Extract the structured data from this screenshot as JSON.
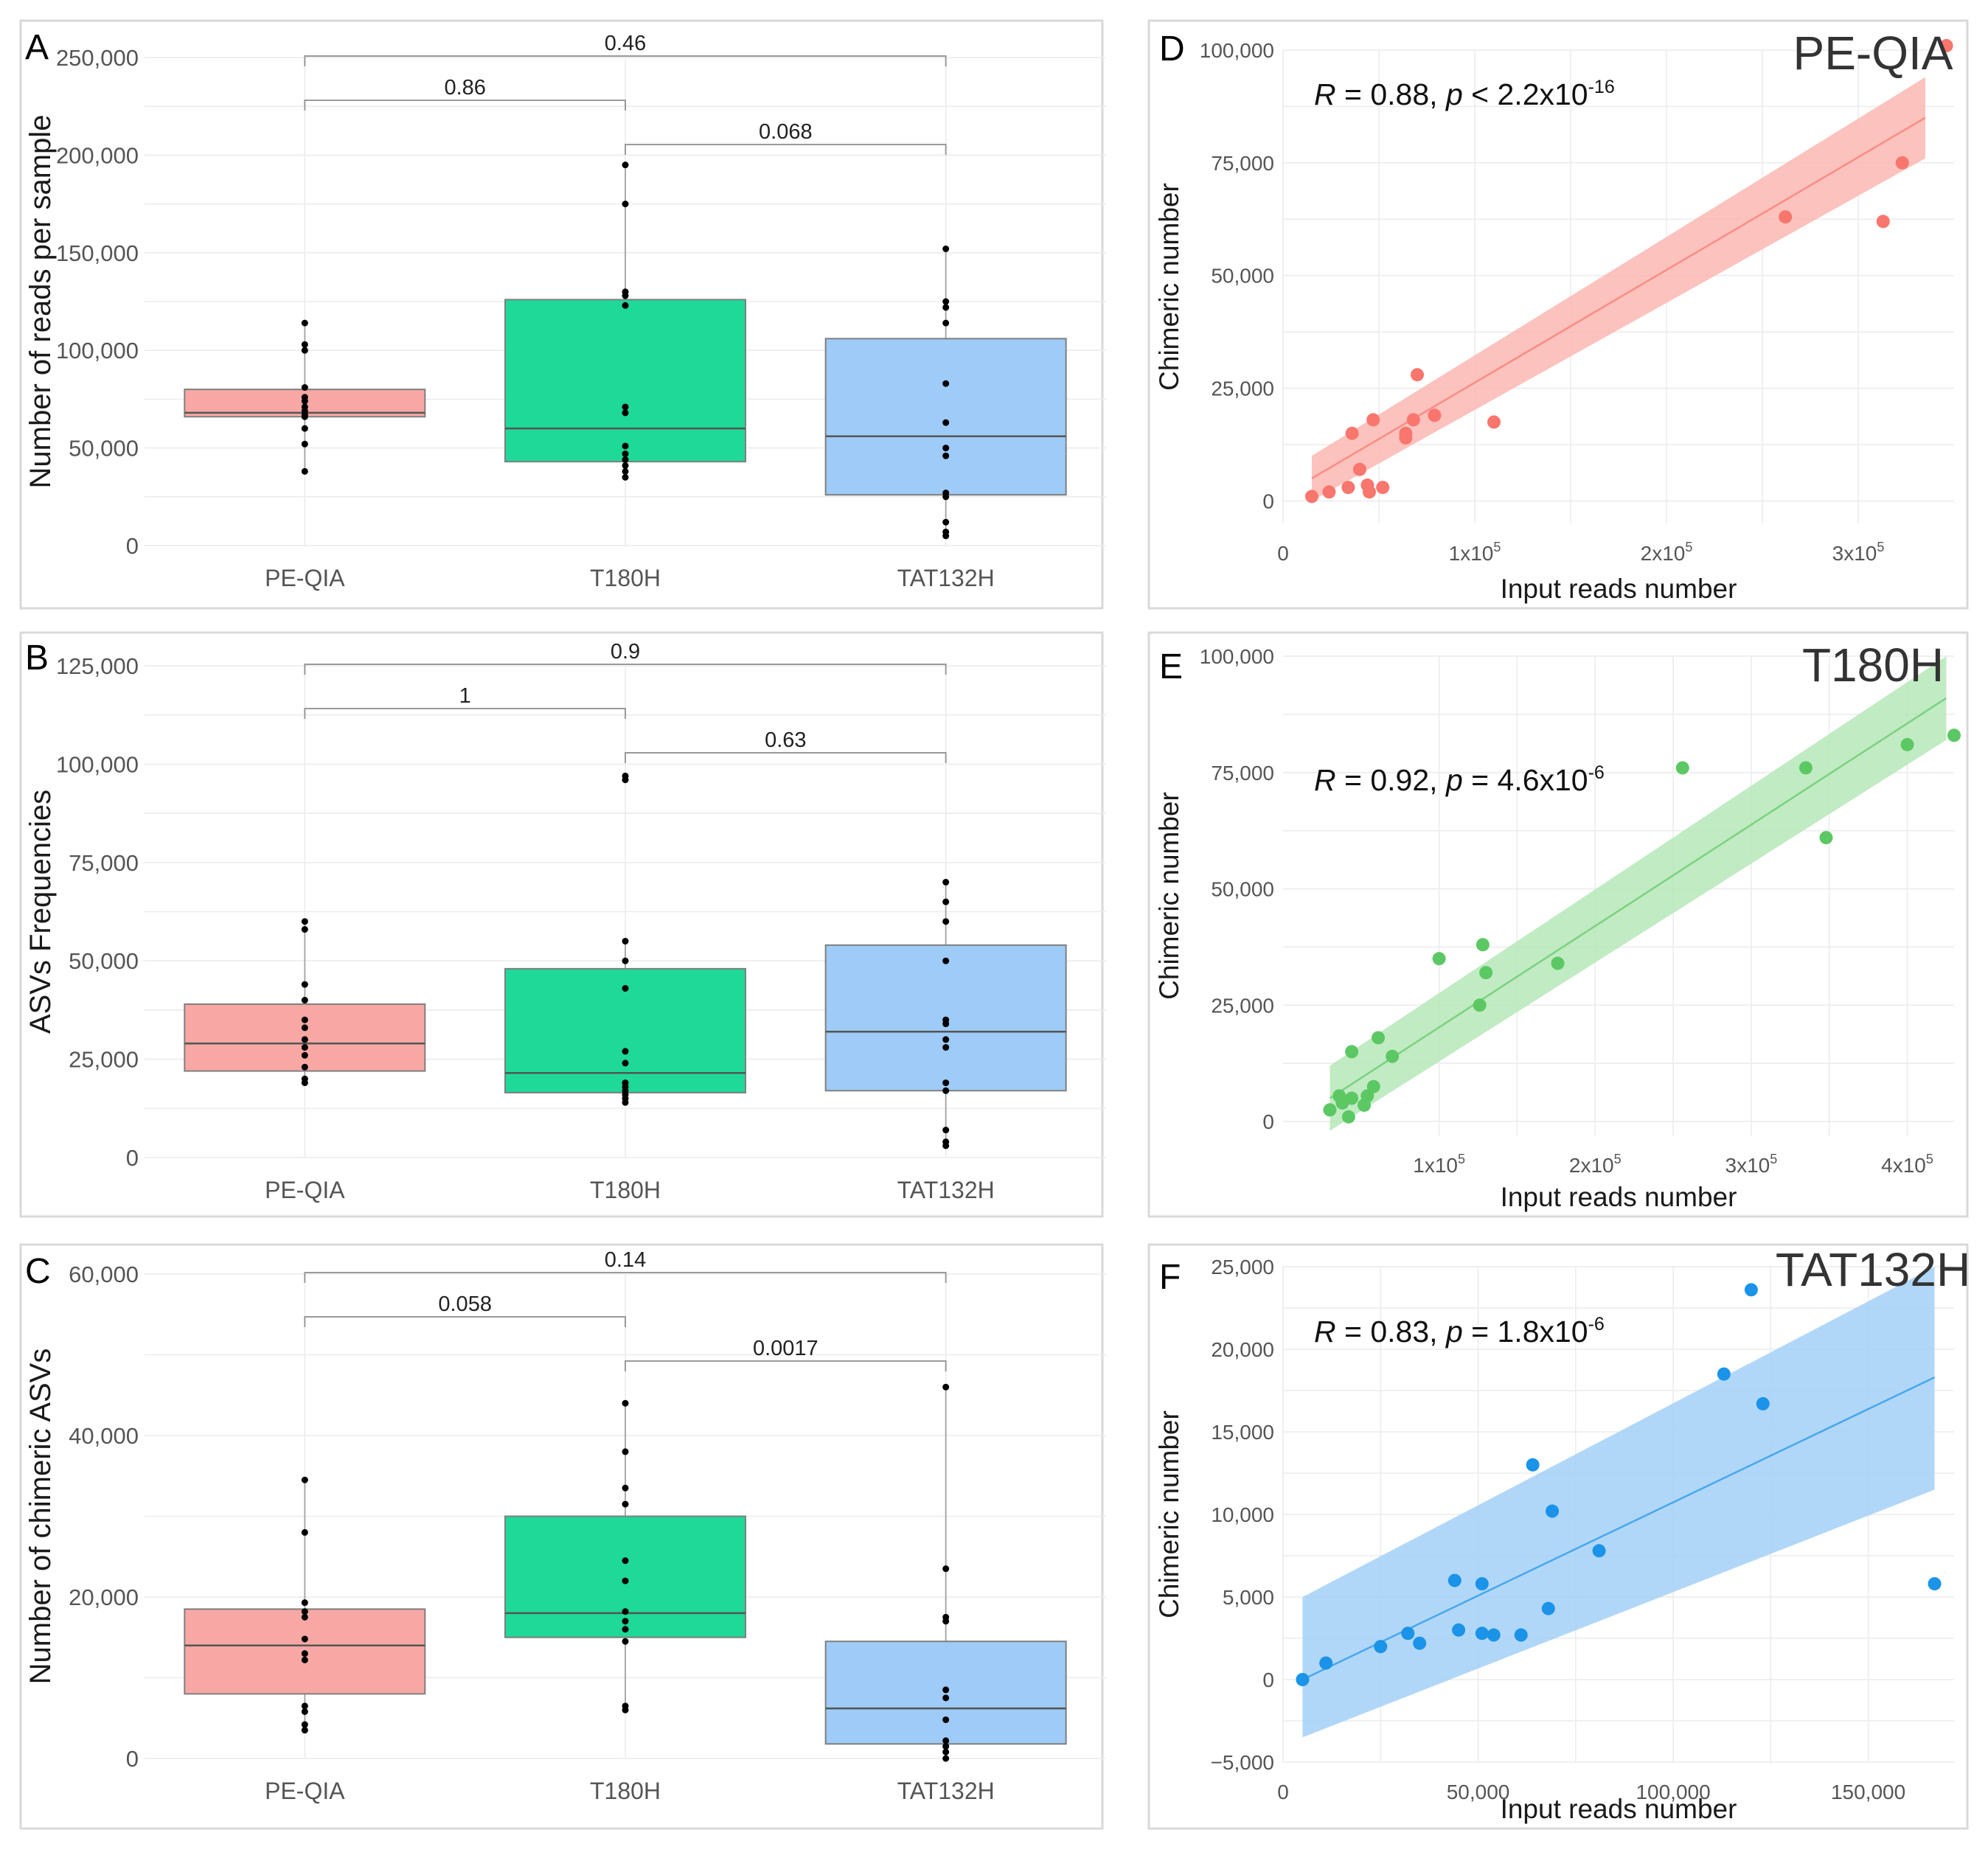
{
  "chart_data": [
    {
      "panel": "A",
      "type": "box",
      "ylabel": "Number of reads per sample",
      "ylim": [
        0,
        250000
      ],
      "yticks": [
        0,
        50000,
        100000,
        150000,
        200000,
        250000
      ],
      "ytick_labels": [
        "0",
        "50,000",
        "100,000",
        "150,000",
        "200,000",
        "250,000"
      ],
      "categories": [
        "PE-QIA",
        "T180H",
        "TAT132H"
      ],
      "boxes": [
        {
          "name": "PE-QIA",
          "color": "#f8a8a4",
          "q1": 66000,
          "median": 68000,
          "q3": 80000,
          "whisker_low": 38000,
          "whisker_high": 114000,
          "points": [
            38000,
            52000,
            60000,
            66000,
            67000,
            69000,
            71000,
            74000,
            76000,
            81000,
            100000,
            103000,
            114000
          ]
        },
        {
          "name": "T180H",
          "color": "#1ed998",
          "q1": 43000,
          "median": 60000,
          "q3": 126000,
          "whisker_low": 35000,
          "whisker_high": 195000,
          "points": [
            35000,
            38000,
            41000,
            44000,
            47000,
            51000,
            68000,
            71000,
            123000,
            128000,
            130000,
            175000,
            195000
          ]
        },
        {
          "name": "TAT132H",
          "color": "#9ecbf7",
          "q1": 26000,
          "median": 56000,
          "q3": 106000,
          "whisker_low": 5000,
          "whisker_high": 152000,
          "points": [
            5000,
            7000,
            12000,
            25000,
            27000,
            46000,
            50000,
            63000,
            83000,
            114000,
            122000,
            125000,
            152000
          ]
        }
      ],
      "comparisons": [
        {
          "from": 0,
          "to": 1,
          "label": "0.86",
          "level": 2
        },
        {
          "from": 1,
          "to": 2,
          "label": "0.068",
          "level": 1
        },
        {
          "from": 0,
          "to": 2,
          "label": "0.46",
          "level": 3
        }
      ]
    },
    {
      "panel": "B",
      "type": "box",
      "ylabel": "ASVs Frequencies",
      "ylim": [
        0,
        125000
      ],
      "yticks": [
        0,
        25000,
        50000,
        75000,
        100000,
        125000
      ],
      "ytick_labels": [
        "0",
        "25,000",
        "50,000",
        "75,000",
        "100,000",
        "125,000"
      ],
      "categories": [
        "PE-QIA",
        "T180H",
        "TAT132H"
      ],
      "boxes": [
        {
          "name": "PE-QIA",
          "color": "#f8a8a4",
          "q1": 22000,
          "median": 29000,
          "q3": 39000,
          "whisker_low": 19000,
          "whisker_high": 60000,
          "points": [
            19000,
            20000,
            23000,
            26000,
            28000,
            30000,
            33000,
            35000,
            40000,
            44000,
            58000,
            60000
          ]
        },
        {
          "name": "T180H",
          "color": "#1ed998",
          "q1": 16500,
          "median": 21500,
          "q3": 48000,
          "whisker_low": 14000,
          "whisker_high": 55000,
          "points": [
            14000,
            15000,
            16000,
            17000,
            18000,
            19000,
            24000,
            27000,
            43000,
            50000,
            55000,
            96000,
            97000
          ]
        },
        {
          "name": "TAT132H",
          "color": "#9ecbf7",
          "q1": 17000,
          "median": 32000,
          "q3": 54000,
          "whisker_low": 3000,
          "whisker_high": 70000,
          "points": [
            3000,
            4000,
            7000,
            17000,
            19000,
            28000,
            30000,
            34000,
            35000,
            50000,
            60000,
            65000,
            70000
          ]
        }
      ],
      "comparisons": [
        {
          "from": 0,
          "to": 1,
          "label": "1",
          "level": 2
        },
        {
          "from": 1,
          "to": 2,
          "label": "0.63",
          "level": 1
        },
        {
          "from": 0,
          "to": 2,
          "label": "0.9",
          "level": 3
        }
      ]
    },
    {
      "panel": "C",
      "type": "box",
      "ylabel": "Number of chimeric ASVs",
      "ylim": [
        0,
        60000
      ],
      "yticks": [
        0,
        20000,
        40000,
        60000
      ],
      "ytick_labels": [
        "0",
        "20,000",
        "40,000",
        "60,000"
      ],
      "categories": [
        "PE-QIA",
        "T180H",
        "TAT132H"
      ],
      "boxes": [
        {
          "name": "PE-QIA",
          "color": "#f8a8a4",
          "q1": 8000,
          "median": 14000,
          "q3": 18500,
          "whisker_low": 3500,
          "whisker_high": 34500,
          "points": [
            3500,
            4200,
            5800,
            6500,
            12200,
            13000,
            14800,
            17500,
            18200,
            19300,
            28000,
            34500
          ]
        },
        {
          "name": "T180H",
          "color": "#1ed998",
          "q1": 15000,
          "median": 18000,
          "q3": 30000,
          "whisker_low": 6000,
          "whisker_high": 44000,
          "points": [
            6000,
            6500,
            14500,
            16000,
            17000,
            18200,
            22000,
            24500,
            31500,
            33500,
            38000,
            44000
          ]
        },
        {
          "name": "TAT132H",
          "color": "#9ecbf7",
          "q1": 1800,
          "median": 6200,
          "q3": 14500,
          "whisker_low": 0,
          "whisker_high": 46000,
          "points": [
            0,
            800,
            1500,
            2200,
            4800,
            7500,
            8500,
            17000,
            17500,
            23500,
            46000
          ]
        }
      ],
      "comparisons": [
        {
          "from": 0,
          "to": 1,
          "label": "0.058",
          "level": 2
        },
        {
          "from": 1,
          "to": 2,
          "label": "0.0017",
          "level": 1
        },
        {
          "from": 0,
          "to": 2,
          "label": "0.14",
          "level": 3
        }
      ]
    },
    {
      "panel": "D",
      "type": "scatter",
      "title": "PE-QIA",
      "stat_R": "0.88",
      "stat_op": "<",
      "stat_mant": "2.2x10",
      "stat_exp": "-16",
      "xlabel": "Input reads number",
      "ylabel": "Chimeric number",
      "color": "#f8766d",
      "band_color": "#fbb7b2",
      "xlim": [
        0,
        350000
      ],
      "ylim": [
        -5000,
        100000
      ],
      "yticks": [
        0,
        25000,
        50000,
        75000,
        100000
      ],
      "ytick_labels": [
        "0",
        "25,000",
        "50,000",
        "75,000",
        "100,000"
      ],
      "xticks": [
        0,
        100000,
        200000,
        300000
      ],
      "xtick_mant": [
        "0",
        "1x10",
        "2x10",
        "3x10"
      ],
      "xtick_exp": [
        "",
        "5",
        "5",
        "5"
      ],
      "fit": {
        "x0": 15000,
        "y0": 5000,
        "x1": 335000,
        "y1": 85000
      },
      "band": {
        "lo0": 0,
        "hi0": 10000,
        "lo1": 76000,
        "hi1": 94000
      },
      "points": [
        [
          15000,
          1000
        ],
        [
          24000,
          2000
        ],
        [
          34000,
          3000
        ],
        [
          36000,
          15000
        ],
        [
          40000,
          7000
        ],
        [
          44000,
          3500
        ],
        [
          45000,
          2000
        ],
        [
          47000,
          18000
        ],
        [
          52000,
          3000
        ],
        [
          64000,
          14000
        ],
        [
          64000,
          15000
        ],
        [
          68000,
          18000
        ],
        [
          70000,
          28000
        ],
        [
          79000,
          19000
        ],
        [
          110000,
          17500
        ],
        [
          262000,
          63000
        ],
        [
          313000,
          62000
        ],
        [
          323000,
          75000
        ],
        [
          346000,
          101000
        ]
      ]
    },
    {
      "panel": "E",
      "type": "scatter",
      "title": "T180H",
      "stat_R": "0.92",
      "stat_op": "=",
      "stat_mant": "4.6x10",
      "stat_exp": "-6",
      "xlabel": "Input reads number",
      "ylabel": "Chimeric number",
      "color": "#5cc863",
      "band_color": "#b6e8b8",
      "xlim": [
        0,
        430000
      ],
      "ylim": [
        -3000,
        100000
      ],
      "yticks": [
        0,
        25000,
        50000,
        75000,
        100000
      ],
      "ytick_labels": [
        "0",
        "25,000",
        "50,000",
        "75,000",
        "100,000"
      ],
      "xticks": [
        100000,
        200000,
        300000,
        400000
      ],
      "xtick_mant": [
        "1x10",
        "2x10",
        "3x10",
        "4x10"
      ],
      "xtick_exp": [
        "5",
        "5",
        "5",
        "5"
      ],
      "fit": {
        "x0": 30000,
        "y0": 5000,
        "x1": 425000,
        "y1": 91000
      },
      "band": {
        "lo0": -2000,
        "hi0": 12000,
        "lo1": 82000,
        "hi1": 100000
      },
      "points": [
        [
          30000,
          2500
        ],
        [
          36000,
          5500
        ],
        [
          38000,
          4000
        ],
        [
          42000,
          1000
        ],
        [
          44000,
          5000
        ],
        [
          44000,
          15000
        ],
        [
          52000,
          3500
        ],
        [
          54000,
          5500
        ],
        [
          58000,
          7500
        ],
        [
          61000,
          18000
        ],
        [
          70000,
          14000
        ],
        [
          100000,
          35000
        ],
        [
          126000,
          25000
        ],
        [
          128000,
          38000
        ],
        [
          130000,
          32000
        ],
        [
          176000,
          34000
        ],
        [
          256000,
          76000
        ],
        [
          335000,
          76000
        ],
        [
          348000,
          61000
        ],
        [
          400000,
          81000
        ],
        [
          430000,
          83000
        ]
      ]
    },
    {
      "panel": "F",
      "type": "scatter",
      "title": "TAT132H",
      "stat_R": "0.83",
      "stat_op": "=",
      "stat_mant": "1.8x10",
      "stat_exp": "-6",
      "xlabel": "Input reads number",
      "ylabel": "Chimeric number",
      "color": "#1a93e8",
      "band_color": "#a3d0f7",
      "xlim": [
        0,
        172000
      ],
      "ylim": [
        -5000,
        25000
      ],
      "yticks": [
        -5000,
        0,
        5000,
        10000,
        15000,
        20000,
        25000
      ],
      "ytick_labels": [
        "−5,000",
        "0",
        "5,000",
        "10,000",
        "15,000",
        "20,000",
        "25,000"
      ],
      "xticks": [
        0,
        50000,
        100000,
        150000
      ],
      "xtick_mant": [
        "0",
        "50,000",
        "100,000",
        "150,000"
      ],
      "xtick_exp": [
        "",
        "",
        "",
        ""
      ],
      "fit": {
        "x0": 5000,
        "y0": 0,
        "x1": 167000,
        "y1": 18300
      },
      "band": {
        "lo0": -3500,
        "hi0": 5000,
        "lo1": 11500,
        "hi1": 25000
      },
      "points": [
        [
          5000,
          0
        ],
        [
          11000,
          1000
        ],
        [
          25000,
          2000
        ],
        [
          32000,
          2800
        ],
        [
          35000,
          2200
        ],
        [
          44000,
          6000
        ],
        [
          45000,
          3000
        ],
        [
          51000,
          2800
        ],
        [
          51000,
          5800
        ],
        [
          54000,
          2700
        ],
        [
          61000,
          2700
        ],
        [
          64000,
          13000
        ],
        [
          68000,
          4300
        ],
        [
          69000,
          10200
        ],
        [
          81000,
          7800
        ],
        [
          113000,
          18500
        ],
        [
          120000,
          23600
        ],
        [
          123000,
          16700
        ],
        [
          167000,
          5800
        ]
      ]
    }
  ]
}
